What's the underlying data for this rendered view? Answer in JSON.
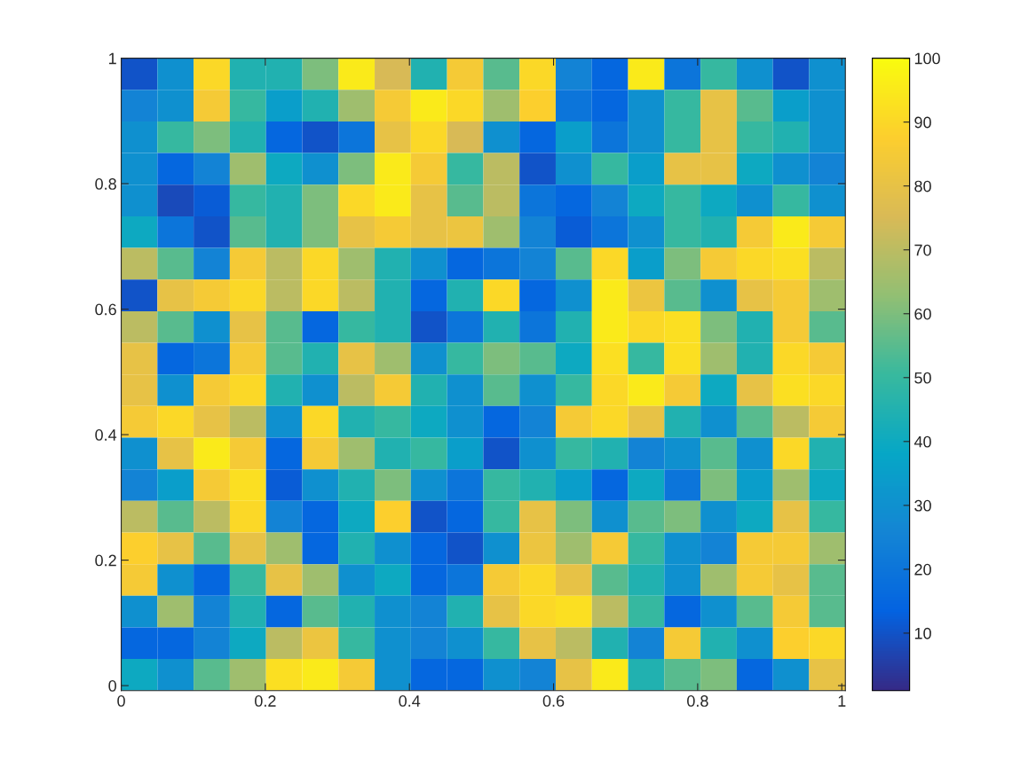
{
  "chart_data": {
    "type": "heatmap",
    "xlim": [
      0,
      1.005
    ],
    "ylim": [
      -0.008,
      1
    ],
    "xticks": [
      0,
      0.2,
      0.4,
      0.6,
      0.8,
      1
    ],
    "yticks": [
      0,
      0.2,
      0.4,
      0.6,
      0.8,
      1
    ],
    "clim": [
      1,
      100
    ],
    "cticks": [
      10,
      20,
      30,
      40,
      50,
      60,
      70,
      80,
      90,
      100
    ],
    "grid": false,
    "cells": [
      [
        10,
        30,
        90,
        45,
        45,
        60,
        95,
        75,
        45,
        85,
        55,
        90,
        25,
        15,
        95,
        20,
        50,
        30,
        10,
        30
      ],
      [
        25,
        30,
        85,
        50,
        35,
        45,
        65,
        85,
        95,
        90,
        65,
        88,
        20,
        15,
        30,
        50,
        80,
        55,
        35,
        30
      ],
      [
        30,
        50,
        60,
        45,
        15,
        10,
        20,
        80,
        90,
        75,
        30,
        15,
        35,
        20,
        30,
        50,
        80,
        50,
        45,
        30
      ],
      [
        30,
        15,
        25,
        65,
        40,
        30,
        60,
        95,
        85,
        50,
        70,
        10,
        30,
        50,
        35,
        80,
        80,
        40,
        30,
        25
      ],
      [
        30,
        8,
        12,
        50,
        45,
        60,
        90,
        95,
        80,
        55,
        70,
        20,
        15,
        25,
        40,
        50,
        40,
        30,
        50,
        30
      ],
      [
        40,
        20,
        10,
        55,
        45,
        60,
        80,
        85,
        80,
        82,
        65,
        25,
        12,
        20,
        30,
        50,
        45,
        85,
        95,
        85
      ],
      [
        70,
        55,
        25,
        85,
        70,
        90,
        65,
        45,
        30,
        15,
        20,
        25,
        55,
        90,
        35,
        60,
        85,
        90,
        92,
        70
      ],
      [
        10,
        80,
        85,
        90,
        70,
        90,
        70,
        45,
        15,
        45,
        90,
        15,
        30,
        95,
        82,
        55,
        30,
        80,
        85,
        65
      ],
      [
        70,
        55,
        30,
        80,
        55,
        15,
        50,
        45,
        10,
        20,
        45,
        20,
        45,
        95,
        90,
        92,
        60,
        45,
        85,
        55
      ],
      [
        80,
        15,
        20,
        85,
        55,
        45,
        80,
        65,
        30,
        50,
        60,
        55,
        40,
        92,
        50,
        92,
        65,
        45,
        90,
        85
      ],
      [
        80,
        30,
        85,
        90,
        45,
        30,
        70,
        85,
        45,
        30,
        55,
        30,
        50,
        90,
        95,
        85,
        40,
        80,
        92,
        90
      ],
      [
        85,
        90,
        80,
        70,
        30,
        90,
        45,
        50,
        40,
        30,
        15,
        25,
        85,
        90,
        80,
        45,
        30,
        55,
        70,
        85
      ],
      [
        30,
        80,
        95,
        85,
        15,
        85,
        65,
        45,
        50,
        35,
        10,
        30,
        50,
        45,
        25,
        30,
        55,
        30,
        90,
        45
      ],
      [
        25,
        35,
        85,
        92,
        12,
        30,
        45,
        60,
        30,
        20,
        50,
        45,
        35,
        15,
        40,
        20,
        60,
        35,
        65,
        40
      ],
      [
        70,
        55,
        70,
        90,
        25,
        15,
        40,
        88,
        10,
        15,
        50,
        80,
        60,
        30,
        55,
        60,
        30,
        40,
        80,
        50
      ],
      [
        88,
        80,
        55,
        80,
        65,
        15,
        45,
        30,
        15,
        10,
        30,
        82,
        65,
        85,
        50,
        30,
        25,
        85,
        85,
        65
      ],
      [
        85,
        30,
        15,
        50,
        80,
        65,
        30,
        40,
        15,
        20,
        85,
        90,
        80,
        55,
        45,
        30,
        65,
        85,
        80,
        55
      ],
      [
        30,
        65,
        25,
        45,
        15,
        55,
        45,
        30,
        25,
        45,
        80,
        90,
        92,
        70,
        50,
        15,
        30,
        55,
        85,
        55
      ],
      [
        15,
        15,
        25,
        40,
        70,
        82,
        50,
        30,
        25,
        30,
        50,
        80,
        70,
        45,
        25,
        85,
        45,
        30,
        88,
        90
      ],
      [
        40,
        30,
        55,
        65,
        92,
        95,
        85,
        30,
        15,
        15,
        30,
        25,
        80,
        95,
        45,
        55,
        60,
        15,
        30,
        80
      ]
    ]
  }
}
